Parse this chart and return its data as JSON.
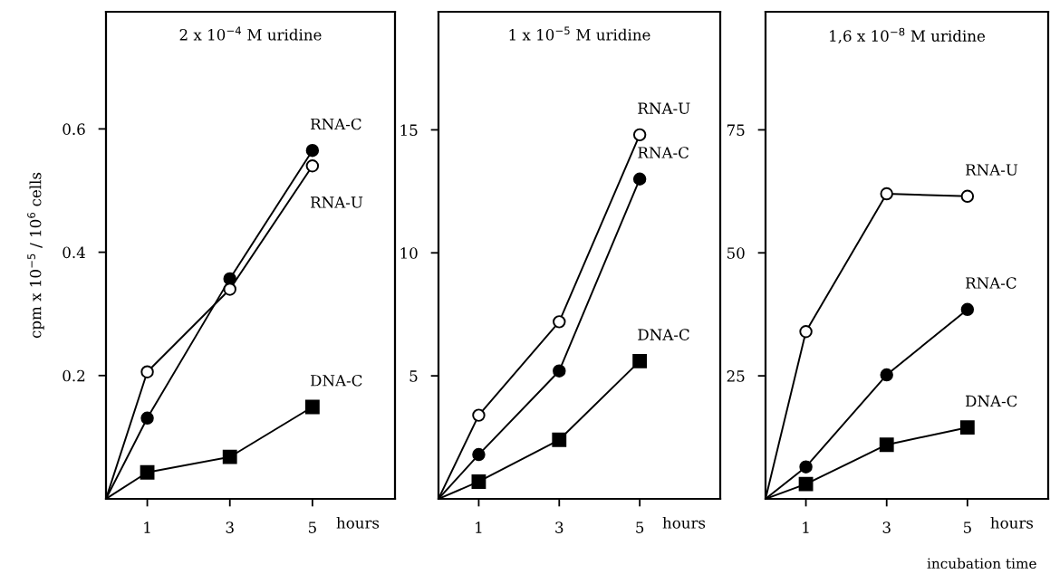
{
  "chart_data": [
    {
      "type": "line",
      "title": "2 x 10$^{−4}$ M uridine",
      "ylabel": "cpm x 10$^{−5}$ / 10$^{6}$ cells",
      "xlabel": "hours",
      "x": [
        0,
        1,
        3,
        5
      ],
      "xlim": [
        0,
        7
      ],
      "xticks": [
        1,
        3,
        5
      ],
      "ylim": [
        0,
        0.79
      ],
      "yticks": [
        0.2,
        0.4,
        0.6
      ],
      "grid": false,
      "legend": false,
      "line_style": "solid",
      "series": [
        {
          "name": "RNA-C",
          "color": "#000000",
          "marker": "circle",
          "values": [
            0,
            0.131,
            0.357,
            0.565
          ]
        },
        {
          "name": "RNA-U",
          "color": "#000000",
          "colors": [
            "#ffffff",
            "#ffffff",
            "#ffffff",
            "#ffffff"
          ],
          "marker": "circle",
          "values": [
            0,
            0.206,
            0.34,
            0.54
          ]
        },
        {
          "name": "DNA-C",
          "color": "#000000",
          "marker": "square",
          "values": [
            0,
            0.043,
            0.068,
            0.149
          ]
        }
      ]
    },
    {
      "type": "line",
      "title": "1 x 10$^{−5}$ M uridine",
      "xlabel": "hours",
      "x": [
        0,
        1,
        3,
        5
      ],
      "xlim": [
        0,
        7
      ],
      "xticks": [
        1,
        3,
        5
      ],
      "ylim": [
        0,
        19.8
      ],
      "yticks": [
        5,
        10,
        15
      ],
      "grid": false,
      "legend": false,
      "line_style": "solid",
      "series": [
        {
          "name": "RNA-U",
          "color": "#000000",
          "colors": [
            "#ffffff",
            "#ffffff",
            "#ffffff",
            "#ffffff"
          ],
          "marker": "circle",
          "values": [
            0,
            3.4,
            7.2,
            14.8
          ]
        },
        {
          "name": "RNA-C",
          "color": "#000000",
          "marker": "circle",
          "values": [
            0,
            1.8,
            5.2,
            13.0
          ]
        },
        {
          "name": "DNA-C",
          "color": "#000000",
          "marker": "square",
          "values": [
            0,
            0.7,
            2.4,
            5.6
          ]
        }
      ]
    },
    {
      "type": "line",
      "title": "1,6 x 10$^{−8}$ M uridine",
      "xlabel": "hours",
      "annotations": [
        "incubation time"
      ],
      "x": [
        0,
        1,
        3,
        5
      ],
      "xlim": [
        0,
        7
      ],
      "xticks": [
        1,
        3,
        5
      ],
      "ylim": [
        0,
        99
      ],
      "yticks": [
        25,
        50,
        75
      ],
      "grid": false,
      "legend": false,
      "line_style": "solid",
      "series": [
        {
          "name": "RNA-U",
          "color": "#000000",
          "colors": [
            "#ffffff",
            "#ffffff",
            "#ffffff",
            "#ffffff"
          ],
          "marker": "circle",
          "values": [
            0,
            34,
            62,
            61.5
          ]
        },
        {
          "name": "RNA-C",
          "color": "#000000",
          "marker": "circle",
          "values": [
            0,
            6.5,
            25.2,
            38.5
          ]
        },
        {
          "name": "DNA-C",
          "color": "#000000",
          "marker": "square",
          "values": [
            0,
            3,
            11,
            14.5
          ]
        }
      ]
    }
  ]
}
